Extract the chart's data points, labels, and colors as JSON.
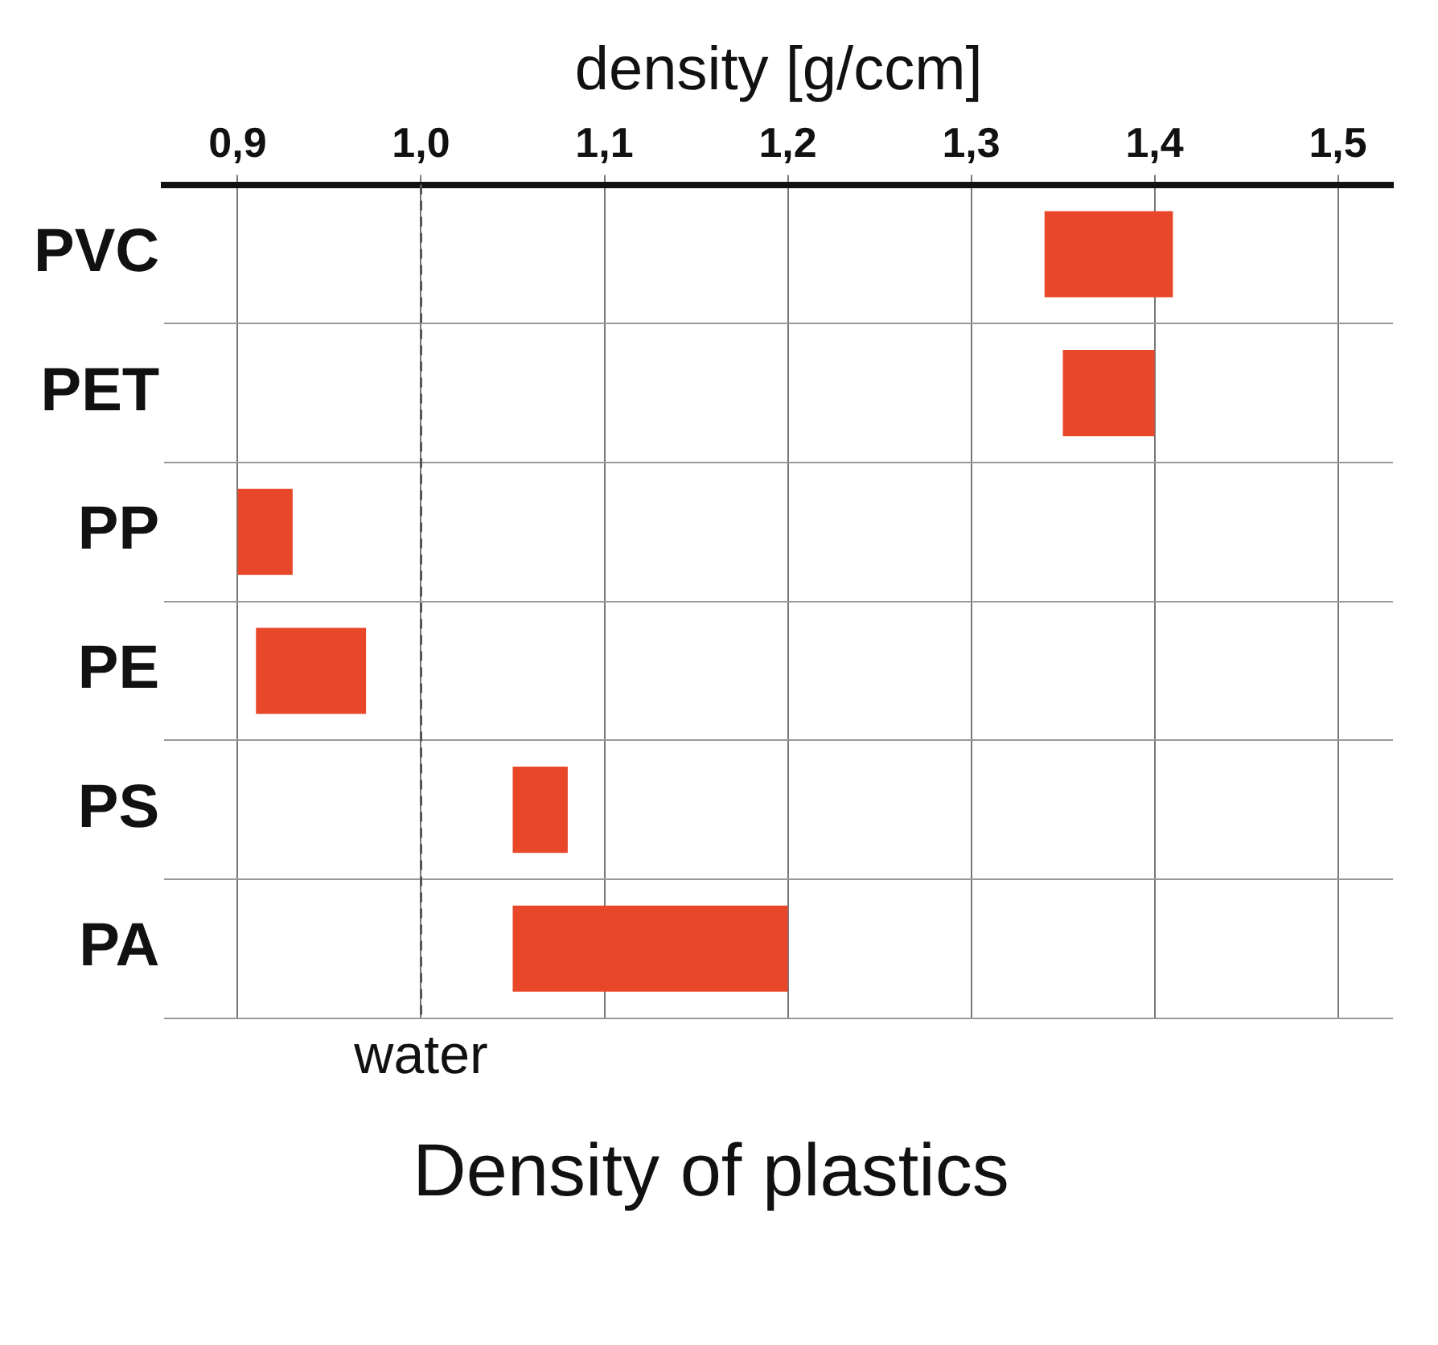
{
  "chart_data": {
    "type": "bar",
    "orientation": "horizontal",
    "title": "Density of plastics",
    "xlabel": "density [g/ccm]",
    "categories": [
      "PVC",
      "PET",
      "PP",
      "PE",
      "PS",
      "PA"
    ],
    "base": [
      1.34,
      1.35,
      0.9,
      0.91,
      1.05,
      1.05
    ],
    "values": [
      0.07,
      0.05,
      0.03,
      0.06,
      0.03,
      0.15
    ],
    "color": "#e8472a",
    "xlim": [
      0.86,
      1.53
    ],
    "xticks": [
      {
        "value": 0.9,
        "label": "0,9"
      },
      {
        "value": 1.0,
        "label": "1,0"
      },
      {
        "value": 1.1,
        "label": "1,1"
      },
      {
        "value": 1.2,
        "label": "1,2"
      },
      {
        "value": 1.3,
        "label": "1,3"
      },
      {
        "value": 1.4,
        "label": "1,4"
      },
      {
        "value": 1.5,
        "label": "1,5"
      }
    ],
    "ref_lines": [
      {
        "axis": "x",
        "value": 1.0,
        "label": "water",
        "line_style": "dashed",
        "color": "#555555"
      }
    ],
    "grid": true,
    "legend": false
  }
}
